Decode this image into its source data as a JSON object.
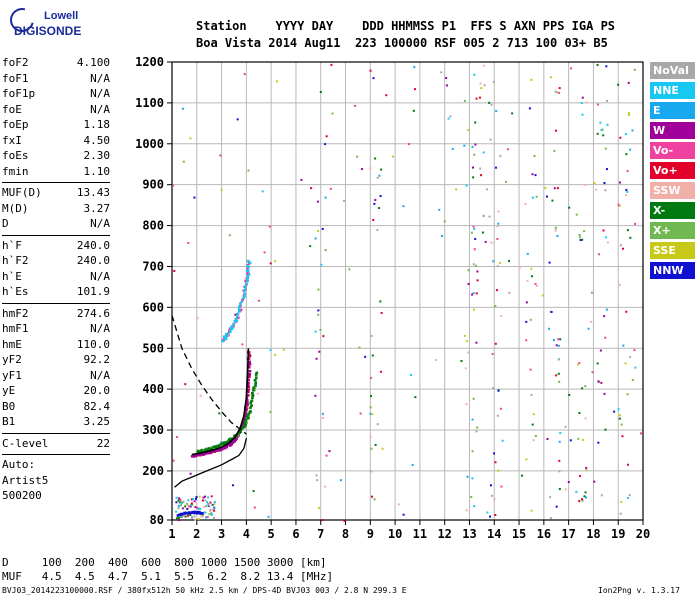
{
  "logo": {
    "line1": "Lowell",
    "line2": "DIGISONDE"
  },
  "header": {
    "labels": "Station    YYYY DAY    DDD HHMMSS P1  FFS S AXN PPS IGA PS",
    "values": "Boa Vista 2014 Aug11  223 100000 RSF 005 2 713 100 03+ B5"
  },
  "params": {
    "group1": [
      {
        "k": "foF2",
        "v": "4.100"
      },
      {
        "k": "foF1",
        "v": "N/A"
      },
      {
        "k": "foF1p",
        "v": "N/A"
      },
      {
        "k": "foE",
        "v": "N/A"
      },
      {
        "k": "foEp",
        "v": "1.18"
      },
      {
        "k": "fxI",
        "v": "4.50"
      },
      {
        "k": "foEs",
        "v": "2.30"
      },
      {
        "k": "fmin",
        "v": "1.10"
      }
    ],
    "group2": [
      {
        "k": "MUF(D)",
        "v": "13.43"
      },
      {
        "k": "M(D)",
        "v": "3.27"
      },
      {
        "k": "D",
        "v": "N/A"
      }
    ],
    "group3": [
      {
        "k": "h`F",
        "v": "240.0"
      },
      {
        "k": "h`F2",
        "v": "240.0"
      },
      {
        "k": "h`E",
        "v": "N/A"
      },
      {
        "k": "h`Es",
        "v": "101.9"
      }
    ],
    "group4": [
      {
        "k": "hmF2",
        "v": "274.6"
      },
      {
        "k": "hmF1",
        "v": "N/A"
      },
      {
        "k": "hmE",
        "v": "110.0"
      },
      {
        "k": "yF2",
        "v": "92.2"
      },
      {
        "k": "yF1",
        "v": "N/A"
      },
      {
        "k": "yE",
        "v": "20.0"
      },
      {
        "k": "B0",
        "v": "82.4"
      },
      {
        "k": "B1",
        "v": "3.25"
      }
    ],
    "group5": [
      {
        "k": "C-level",
        "v": "22"
      }
    ],
    "auto": [
      "Auto:",
      "Artist5",
      "500200"
    ]
  },
  "legend": [
    {
      "label": "NoVal",
      "color": "#a8a8a8"
    },
    {
      "label": "NNE",
      "color": "#19c8f0"
    },
    {
      "label": "E",
      "color": "#18a8f0"
    },
    {
      "label": "W",
      "color": "#a0009a"
    },
    {
      "label": "Vo-",
      "color": "#f040a0"
    },
    {
      "label": "Vo+",
      "color": "#e0002a"
    },
    {
      "label": "SSW",
      "color": "#f0b0a8"
    },
    {
      "label": "X-",
      "color": "#007a10"
    },
    {
      "label": "X+",
      "color": "#70b850"
    },
    {
      "label": "SSE",
      "color": "#c8c818"
    },
    {
      "label": "NNW",
      "color": "#1010d0"
    }
  ],
  "distance_table": {
    "d_row": "D     100  200  400  600  800 1000 1500 3000 [km]",
    "muf_row": "MUF   4.5  4.5  4.7  5.1  5.5  6.2  8.2 13.4 [MHz]"
  },
  "footer": "BVJ03_2014223100000.RSF / 380fx512h 50 kHz 2.5 km / DPS-4D BVJ03 003 / 2.8 N 299.3 E",
  "version": "Ion2Png v. 1.3.17",
  "chart_data": {
    "type": "scatter",
    "xlim": [
      1,
      20
    ],
    "ylim": [
      80,
      1200
    ],
    "xticks": [
      1,
      2,
      3,
      4,
      5,
      6,
      7,
      8,
      9,
      10,
      11,
      12,
      13,
      14,
      15,
      16,
      17,
      18,
      19,
      20
    ],
    "yticks": [
      80,
      200,
      300,
      400,
      500,
      600,
      700,
      800,
      900,
      1000,
      1100,
      1200
    ],
    "grid": true,
    "legend_position": "right",
    "profile_solid": [
      [
        1.1,
        160
      ],
      [
        1.4,
        175
      ],
      [
        1.8,
        185
      ],
      [
        2.2,
        195
      ],
      [
        2.6,
        205
      ],
      [
        3.0,
        215
      ],
      [
        3.4,
        228
      ],
      [
        3.7,
        238
      ],
      [
        3.9,
        255
      ],
      [
        4.0,
        280
      ]
    ],
    "profile_dashed": [
      [
        1.0,
        580
      ],
      [
        1.4,
        500
      ],
      [
        1.8,
        450
      ],
      [
        2.2,
        410
      ],
      [
        2.6,
        375
      ],
      [
        3.0,
        345
      ],
      [
        3.4,
        318
      ],
      [
        3.8,
        300
      ],
      [
        4.0,
        290
      ]
    ],
    "trace_o": [
      [
        1.8,
        240
      ],
      [
        2.1,
        243
      ],
      [
        2.4,
        247
      ],
      [
        2.7,
        252
      ],
      [
        3.0,
        258
      ],
      [
        3.3,
        268
      ],
      [
        3.55,
        283
      ],
      [
        3.75,
        305
      ],
      [
        3.9,
        335
      ],
      [
        4.0,
        380
      ],
      [
        4.05,
        440
      ],
      [
        4.08,
        500
      ]
    ],
    "trace_o_upper": [
      [
        3.0,
        520
      ],
      [
        3.3,
        545
      ],
      [
        3.6,
        580
      ],
      [
        3.85,
        630
      ],
      [
        4.0,
        680
      ],
      [
        4.08,
        720
      ]
    ],
    "trace_x": [
      [
        2.0,
        250
      ],
      [
        2.4,
        256
      ],
      [
        2.8,
        264
      ],
      [
        3.2,
        275
      ],
      [
        3.6,
        292
      ],
      [
        3.9,
        315
      ],
      [
        4.1,
        350
      ],
      [
        4.25,
        400
      ],
      [
        4.35,
        450
      ]
    ],
    "trace_es": [
      [
        1.2,
        95
      ],
      [
        1.5,
        100
      ],
      [
        1.8,
        102
      ],
      [
        2.0,
        101
      ],
      [
        2.2,
        100
      ]
    ],
    "noise_seed": 7
  }
}
